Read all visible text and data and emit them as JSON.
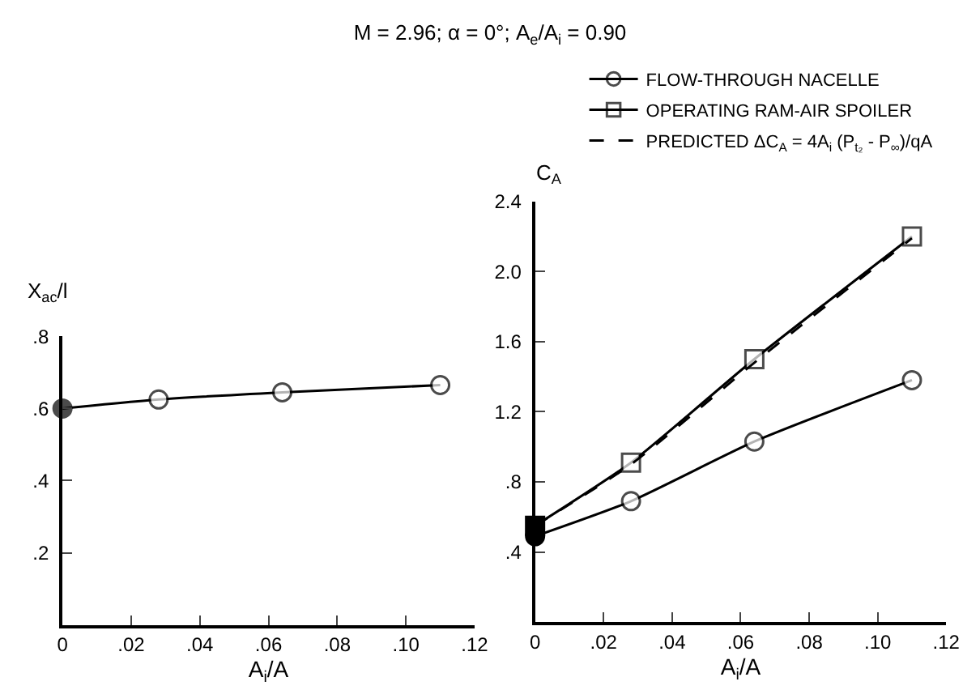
{
  "chart_data": [
    {
      "type": "line",
      "title": "M = 2.96; α = 0°; A$_{e}$/A$_{i}$ = 0.90",
      "xlabel": "A$_{i}$/A",
      "ylabel": "X$_{ac}$/l",
      "x": [
        0,
        0.028,
        0.064,
        0.11
      ],
      "xlim": [
        0,
        0.12
      ],
      "xticks": [
        {
          "value": 0,
          "label": "0"
        },
        {
          "value": 0.02,
          "label": ".02"
        },
        {
          "value": 0.04,
          "label": ".04"
        },
        {
          "value": 0.06,
          "label": ".06"
        },
        {
          "value": 0.08,
          "label": ".08"
        },
        {
          "value": 0.1,
          "label": ".10"
        },
        {
          "value": 0.12,
          "label": ".12"
        }
      ],
      "ylim": [
        0,
        0.8
      ],
      "yticks": [
        {
          "value": 0.2,
          "label": ".2"
        },
        {
          "value": 0.4,
          "label": ".4"
        },
        {
          "value": 0.6,
          "label": ".6"
        },
        {
          "value": 0.8,
          "label": ".8"
        }
      ],
      "grid": false,
      "legend": false,
      "series": [
        {
          "color": "#000000",
          "marker": "circle",
          "colors": [
            "#000000",
            "#ffffff",
            "#ffffff",
            "#ffffff"
          ],
          "values": [
            0.6,
            0.625,
            0.645,
            0.665
          ]
        }
      ]
    },
    {
      "type": "line",
      "xlabel": "A$_{i}$/A",
      "ylabel": "C$_{A}$",
      "x": [
        0,
        0.028,
        0.064,
        0.11
      ],
      "xlim": [
        0,
        0.12
      ],
      "xticks": [
        {
          "value": 0,
          "label": "0"
        },
        {
          "value": 0.02,
          "label": ".02"
        },
        {
          "value": 0.04,
          "label": ".04"
        },
        {
          "value": 0.06,
          "label": ".06"
        },
        {
          "value": 0.08,
          "label": ".08"
        },
        {
          "value": 0.1,
          "label": ".10"
        },
        {
          "value": 0.12,
          "label": ".12"
        }
      ],
      "ylim": [
        0,
        2.4
      ],
      "yticks": [
        {
          "value": 0.4,
          "label": ".4"
        },
        {
          "value": 0.8,
          "label": ".8"
        },
        {
          "value": 1.2,
          "label": "1.2"
        },
        {
          "value": 1.6,
          "label": "1.6"
        },
        {
          "value": 2.0,
          "label": "2.0"
        },
        {
          "value": 2.4,
          "label": "2.4"
        }
      ],
      "grid": false,
      "legend": "top",
      "series": [
        {
          "name": "FLOW-THROUGH NACELLE",
          "color": "#000000",
          "marker": "circle",
          "colors": [
            null,
            "#ffffff",
            "#ffffff",
            "#ffffff"
          ],
          "values": [
            0.49,
            0.69,
            1.03,
            1.38
          ]
        },
        {
          "name": "OPERATING RAM-AIR SPOILER",
          "color": "#000000",
          "marker": "square",
          "colors": [
            null,
            "#ffffff",
            "#ffffff",
            "#ffffff"
          ],
          "values": [
            0.55,
            0.91,
            1.5,
            2.2
          ]
        },
        {
          "name": "PREDICTED ΔC$_{A}$ = 4A$_{i}$ (P$_{t₂}$ - P$_{∞}$)/qA",
          "color": "#000000",
          "marker": "none",
          "line_style": "dashed",
          "values": [
            0.55,
            0.9,
            1.48,
            2.19
          ]
        },
        {
          "type": "scatter",
          "color": "#000000",
          "marker": "square",
          "x": [
            0
          ],
          "values": [
            0.55
          ]
        },
        {
          "type": "scatter",
          "color": "#000000",
          "marker": "circle",
          "x": [
            0
          ],
          "values": [
            0.49
          ]
        }
      ]
    }
  ]
}
